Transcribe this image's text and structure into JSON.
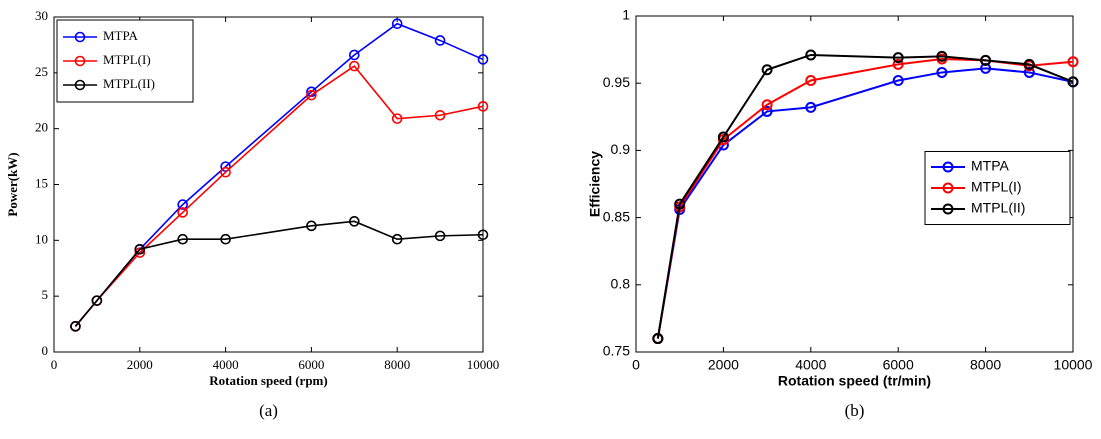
{
  "chart_data": [
    {
      "type": "line",
      "caption": "(a)",
      "xlabel": "Rotation speed (rpm)",
      "ylabel": "Power(kW)",
      "x": [
        500,
        1000,
        2000,
        3000,
        4000,
        6000,
        7000,
        8000,
        9000,
        10000
      ],
      "xlim": [
        0,
        10000
      ],
      "xticks": [
        0,
        2000,
        4000,
        6000,
        8000,
        10000
      ],
      "ylim": [
        0,
        30
      ],
      "yticks": [
        0,
        5,
        10,
        15,
        20,
        25,
        30
      ],
      "legend": "upper left",
      "grid": false,
      "series": [
        {
          "name": "MTPA",
          "color": "#0000ff",
          "values": [
            2.3,
            4.6,
            9.2,
            13.2,
            16.6,
            23.3,
            26.6,
            29.4,
            27.9,
            26.2
          ]
        },
        {
          "name": "MTPL(I)",
          "color": "#ff0000",
          "values": [
            2.3,
            4.6,
            8.9,
            12.5,
            16.1,
            23.0,
            25.6,
            20.9,
            21.2,
            22.0
          ]
        },
        {
          "name": "MTPL(II)",
          "color": "#000000",
          "values": [
            2.3,
            4.6,
            9.2,
            10.1,
            10.1,
            11.3,
            11.7,
            10.1,
            10.4,
            10.5
          ]
        }
      ]
    },
    {
      "type": "line",
      "caption": "(b)",
      "xlabel": "Rotation speed (tr/min)",
      "ylabel": "Efficiency",
      "x": [
        500,
        1000,
        2000,
        3000,
        4000,
        6000,
        7000,
        8000,
        9000,
        10000
      ],
      "xlim": [
        0,
        10000
      ],
      "xticks": [
        0,
        2000,
        4000,
        6000,
        8000,
        10000
      ],
      "ylim": [
        0.75,
        1
      ],
      "yticks": [
        0.75,
        0.8,
        0.85,
        0.9,
        0.95,
        1
      ],
      "legend": "center right",
      "grid": false,
      "series": [
        {
          "name": "MTPA",
          "color": "#0000ff",
          "values": [
            0.76,
            0.856,
            0.904,
            0.929,
            0.932,
            0.952,
            0.958,
            0.961,
            0.958,
            0.951
          ]
        },
        {
          "name": "MTPL(I)",
          "color": "#ff0000",
          "values": [
            0.76,
            0.858,
            0.908,
            0.934,
            0.952,
            0.964,
            0.968,
            0.967,
            0.963,
            0.966
          ]
        },
        {
          "name": "MTPL(II)",
          "color": "#000000",
          "values": [
            0.76,
            0.86,
            0.91,
            0.96,
            0.971,
            0.969,
            0.97,
            0.967,
            0.964,
            0.951
          ]
        }
      ]
    }
  ]
}
